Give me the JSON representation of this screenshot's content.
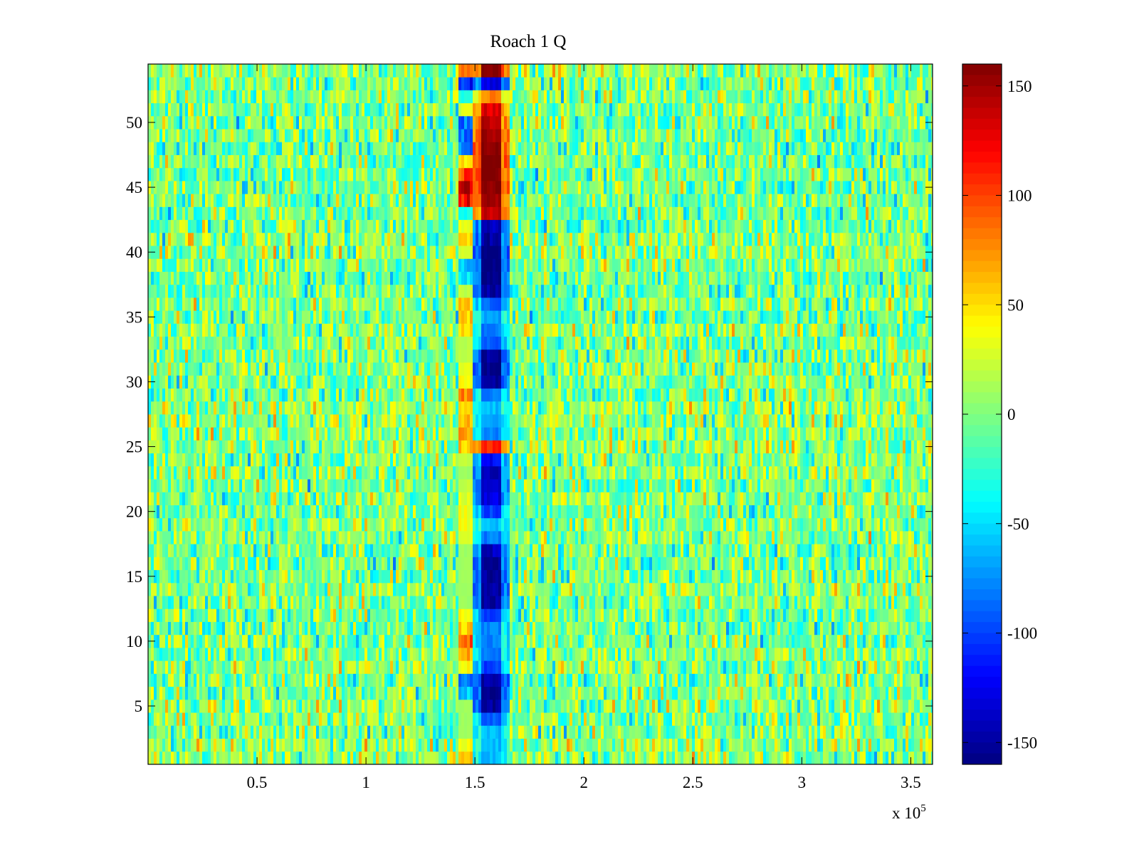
{
  "chart_data": {
    "type": "heatmap",
    "title": "Roach 1 Q",
    "xlabel": "",
    "ylabel": "",
    "x_multiplier_label": "x 10",
    "x_multiplier_exponent": "5",
    "xlim": [
      0,
      3.6
    ],
    "ylim": [
      0.5,
      54.5
    ],
    "x_ticks": [
      0.5,
      1,
      1.5,
      2,
      2.5,
      3,
      3.5
    ],
    "x_tick_labels": [
      "0.5",
      "1",
      "1.5",
      "2",
      "2.5",
      "3",
      "3.5"
    ],
    "y_ticks": [
      5,
      10,
      15,
      20,
      25,
      30,
      35,
      40,
      45,
      50
    ],
    "y_tick_labels": [
      "5",
      "10",
      "15",
      "20",
      "25",
      "30",
      "35",
      "40",
      "45",
      "50"
    ],
    "rows": 54,
    "color_limits": [
      -160,
      160
    ],
    "colormap": "jet",
    "colorbar": {
      "ticks": [
        -150,
        -100,
        -50,
        0,
        50,
        100,
        150
      ],
      "tick_labels": [
        "-150",
        "-100",
        "-50",
        "0",
        "50",
        "100",
        "150"
      ],
      "placement": "right"
    },
    "background_level": 0,
    "feature": {
      "description_x_center": 1.58,
      "central_band_values_by_row": {
        "1": -60,
        "2": -60,
        "3": -60,
        "4": -90,
        "5": -150,
        "6": -160,
        "7": -150,
        "8": -100,
        "9": -80,
        "10": -80,
        "11": -80,
        "12": -100,
        "13": -150,
        "14": -150,
        "15": -150,
        "16": -150,
        "17": -140,
        "18": -80,
        "19": -60,
        "20": -100,
        "21": -130,
        "22": -140,
        "23": -140,
        "24": -120,
        "25": 110,
        "26": -80,
        "27": -70,
        "28": -60,
        "29": -80,
        "30": -150,
        "31": -160,
        "32": -150,
        "33": -90,
        "34": -80,
        "35": -70,
        "36": -90,
        "37": -150,
        "38": -160,
        "39": -160,
        "40": -160,
        "41": -150,
        "42": -140,
        "43": 140,
        "44": 150,
        "45": 160,
        "46": 160,
        "47": 160,
        "48": 160,
        "49": 150,
        "50": 140,
        "51": 130,
        "52": 80,
        "53": -130,
        "54": 160
      },
      "left_band_values_by_row": {
        "1": 60,
        "2": 40,
        "3": 10,
        "4": 10,
        "5": 10,
        "6": -60,
        "7": -90,
        "8": 40,
        "9": 70,
        "10": 100,
        "11": 60,
        "12": 40,
        "13": 10,
        "14": 10,
        "15": 10,
        "16": 10,
        "17": 10,
        "18": 30,
        "19": 40,
        "20": 40,
        "21": 30,
        "22": 20,
        "23": 10,
        "24": 20,
        "25": 60,
        "26": 80,
        "27": 70,
        "28": 60,
        "29": 80,
        "30": 40,
        "31": 30,
        "32": 20,
        "33": 20,
        "34": 50,
        "35": 60,
        "36": 60,
        "37": 20,
        "38": -50,
        "39": -60,
        "40": 30,
        "41": 50,
        "42": 40,
        "43": -40,
        "44": 120,
        "45": 130,
        "46": 100,
        "47": 50,
        "48": -90,
        "49": -90,
        "50": -90,
        "51": 30,
        "52": -30,
        "53": -110,
        "54": 80
      }
    }
  }
}
